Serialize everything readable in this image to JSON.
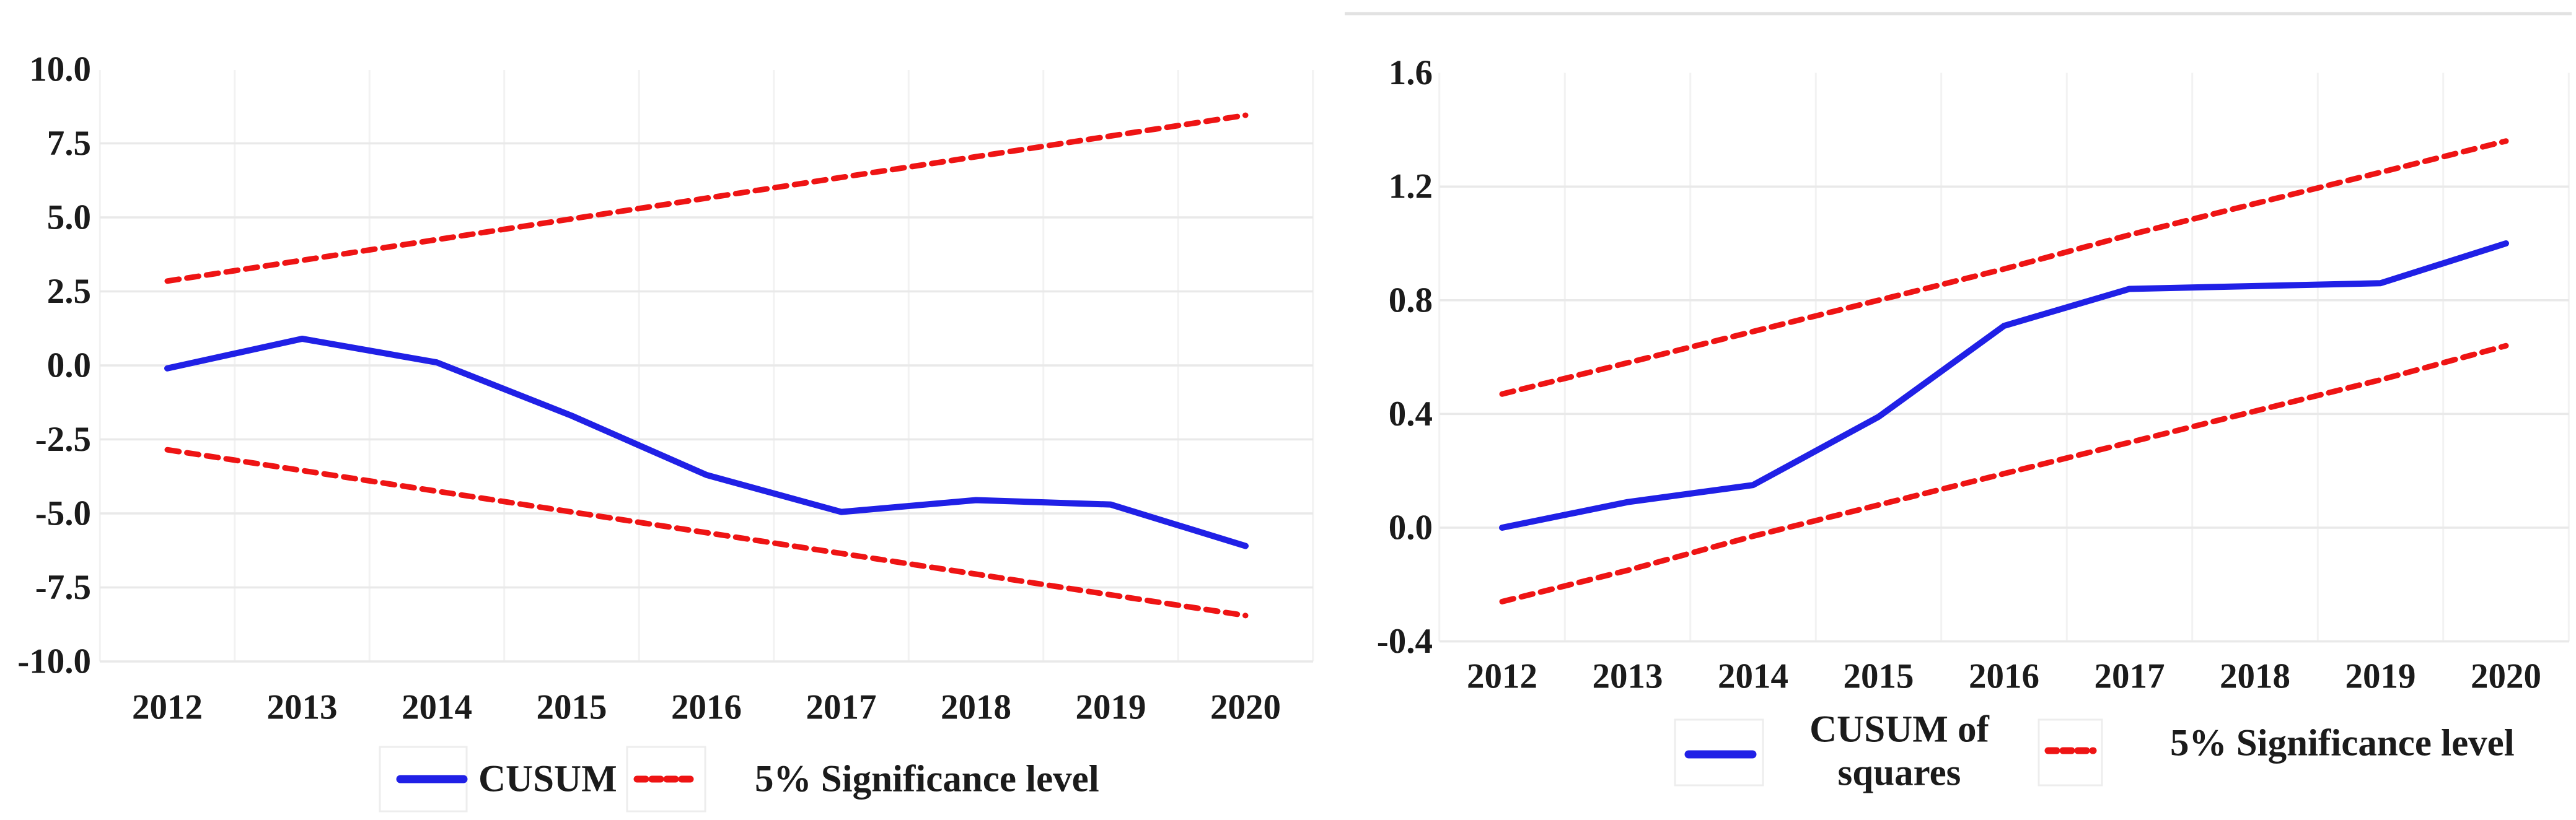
{
  "figure": {
    "background": "#ffffff",
    "text_color": "#1b1b1b",
    "accent_blue": "#2020e6",
    "accent_red": "#ee1414"
  },
  "chart_data": [
    {
      "type": "line",
      "title": "",
      "xlabel": "",
      "ylabel": "",
      "categories": [
        "2012",
        "2013",
        "2014",
        "2015",
        "2016",
        "2017",
        "2018",
        "2019",
        "2020"
      ],
      "ylim": [
        -10.0,
        10.0
      ],
      "grid": "light horizontal gridlines at ticks, faint vertical gridlines between categories",
      "legend_position": "bottom",
      "yticks": {
        "labels": [
          "10.0",
          "7.5",
          "5.0",
          "2.5",
          "0.0",
          "-2.5",
          "-5.0",
          "-7.5",
          "-10.0"
        ],
        "values": [
          10.0,
          7.5,
          5.0,
          2.5,
          0.0,
          -2.5,
          -5.0,
          -7.5,
          -10.0
        ]
      },
      "series": [
        {
          "name": "CUSUM",
          "role": "statistic",
          "color": "#2020e6",
          "style": "solid",
          "values": [
            -0.1,
            0.9,
            0.1,
            -1.7,
            -3.7,
            -4.95,
            -4.55,
            -4.7,
            -6.1
          ]
        },
        {
          "name": "5% Significance level",
          "role": "upper-bound",
          "color": "#ee1414",
          "style": "dashed",
          "values": [
            2.85,
            3.55,
            4.25,
            4.95,
            5.65,
            6.35,
            7.05,
            7.75,
            8.45
          ]
        },
        {
          "name": "5% Significance level",
          "role": "lower-bound",
          "color": "#ee1414",
          "style": "dashed",
          "values": [
            -2.85,
            -3.55,
            -4.25,
            -4.95,
            -5.65,
            -6.35,
            -7.05,
            -7.75,
            -8.45
          ]
        }
      ],
      "legend": {
        "items": [
          {
            "label_lines": [
              "CUSUM"
            ],
            "swatch": "solid",
            "color": "#2020e6"
          },
          {
            "label_lines": [
              "5% Significance level"
            ],
            "swatch": "dashed",
            "color": "#ee1414"
          }
        ]
      }
    },
    {
      "type": "line",
      "title": "",
      "xlabel": "",
      "ylabel": "",
      "categories": [
        "2012",
        "2013",
        "2014",
        "2015",
        "2016",
        "2017",
        "2018",
        "2019",
        "2020"
      ],
      "ylim": [
        -0.4,
        1.6
      ],
      "grid": "light horizontal gridlines at ticks, faint vertical gridlines between categories, light top border",
      "legend_position": "bottom",
      "yticks": {
        "labels": [
          "1.6",
          "1.2",
          "0.8",
          "0.4",
          "0.0",
          "-0.4"
        ],
        "values": [
          1.6,
          1.2,
          0.8,
          0.4,
          0.0,
          -0.4
        ]
      },
      "series": [
        {
          "name": "CUSUM of squares",
          "role": "statistic",
          "color": "#2020e6",
          "style": "solid",
          "values": [
            0.0,
            0.09,
            0.15,
            0.39,
            0.71,
            0.84,
            0.85,
            0.86,
            1.0
          ]
        },
        {
          "name": "5% Significance level",
          "role": "upper-bound",
          "color": "#ee1414",
          "style": "dashed",
          "values": [
            0.47,
            0.58,
            0.69,
            0.8,
            0.91,
            1.03,
            1.14,
            1.25,
            1.36
          ]
        },
        {
          "name": "5% Significance level",
          "role": "lower-bound",
          "color": "#ee1414",
          "style": "dashed",
          "values": [
            -0.26,
            -0.15,
            -0.03,
            0.08,
            0.19,
            0.3,
            0.41,
            0.52,
            0.64
          ]
        }
      ],
      "legend": {
        "items": [
          {
            "label_lines": [
              "CUSUM of",
              "squares"
            ],
            "swatch": "solid",
            "color": "#2020e6"
          },
          {
            "label_lines": [
              "5% Significance level"
            ],
            "swatch": "dashed",
            "color": "#ee1414"
          }
        ]
      }
    }
  ]
}
